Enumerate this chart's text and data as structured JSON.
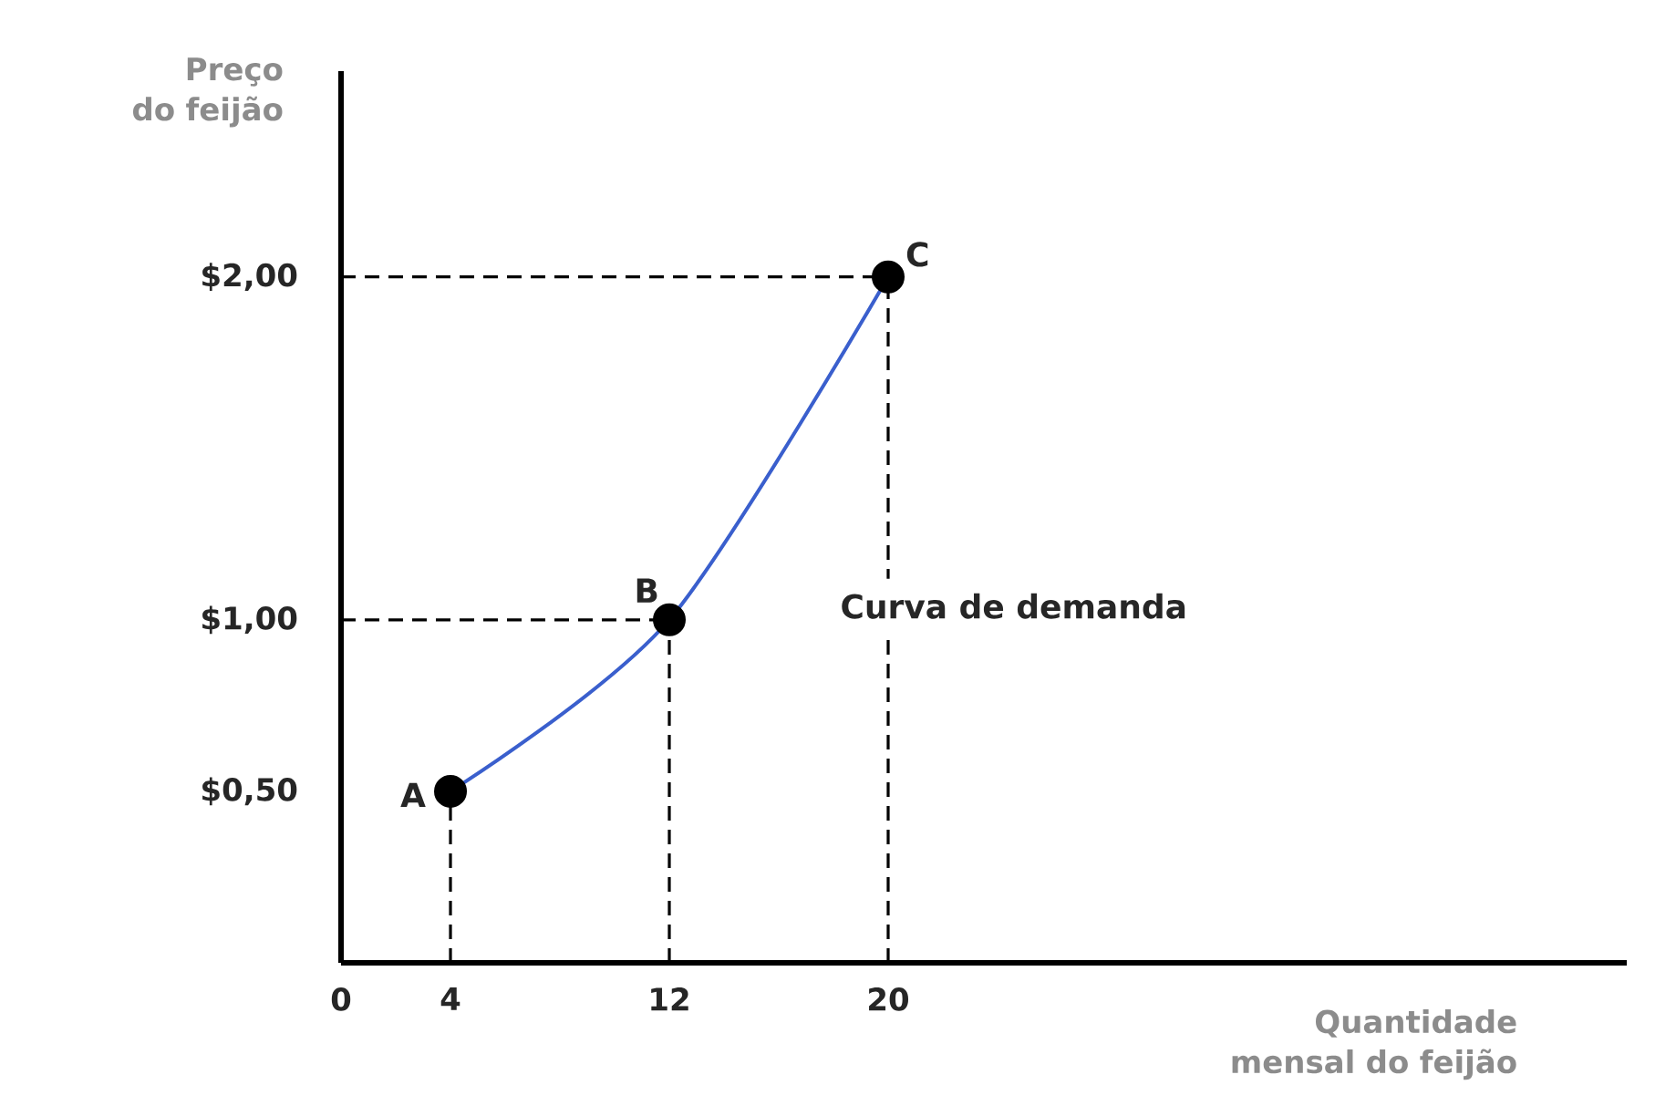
{
  "chart_data": {
    "type": "line",
    "xlabel": "Quantidade mensal do feijão",
    "ylabel": "Preço do feijão",
    "x": [
      4,
      12,
      20
    ],
    "series": [
      {
        "color": "#3a5fcd",
        "values": [
          0.5,
          1,
          2
        ]
      }
    ],
    "marker": "circle",
    "xlim": [
      0,
      47
    ],
    "ylim": [
      0,
      2.6
    ],
    "xticks": [
      0,
      4,
      12,
      20
    ],
    "yticks": [
      {
        "value": 0.5,
        "label": "$0,50"
      },
      {
        "value": 1,
        "label": "$1,00"
      },
      {
        "value": 2,
        "label": "$2,00"
      }
    ],
    "ref_lines": [
      {
        "axis": "x",
        "value": 4,
        "line_style": "dashed"
      },
      {
        "axis": "x",
        "value": 12,
        "line_style": "dashed"
      },
      {
        "axis": "x",
        "value": 20,
        "line_style": "dashed"
      },
      {
        "axis": "y",
        "value": 1,
        "line_style": "dashed"
      },
      {
        "axis": "y",
        "value": 2,
        "line_style": "dashed"
      }
    ],
    "annotations": [
      {
        "text": "A",
        "x": 4,
        "y": 0.5
      },
      {
        "text": "B",
        "x": 12,
        "y": 1
      },
      {
        "text": "C",
        "x": 20,
        "y": 2
      },
      "Curva  de demanda"
    ]
  }
}
